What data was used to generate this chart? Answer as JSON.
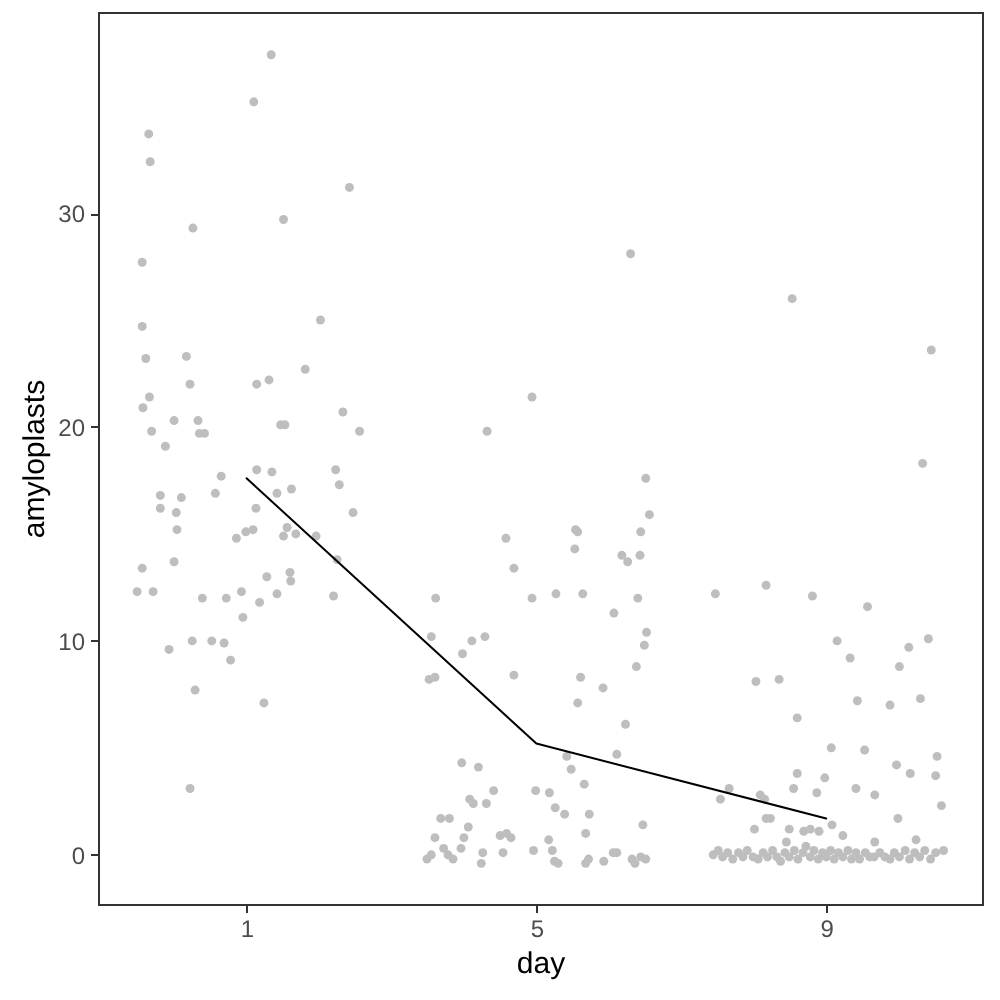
{
  "chart_data": {
    "type": "scatter",
    "xlabel": "day",
    "ylabel": "amyloplasts",
    "xlim": [
      -1.05,
      11.15
    ],
    "xticks": [
      1,
      5,
      9
    ],
    "ylim": [
      -2.3,
      39.4
    ],
    "yticks": [
      0,
      10,
      20,
      30
    ],
    "grid": false,
    "series": [
      {
        "color": "#bebebe",
        "marker": "circle",
        "x": [
          1.34,
          1.1,
          -0.35,
          -0.33,
          2.42,
          1.51,
          0.26,
          -0.44,
          -0.44,
          2.02,
          -0.39,
          0.17,
          1.81,
          0.22,
          1.14,
          1.31,
          -0.34,
          -0.43,
          2.33,
          0.0,
          0.33,
          1.47,
          1.53,
          -0.31,
          0.35,
          0.42,
          2.56,
          -0.12,
          1.14,
          1.35,
          2.23,
          0.65,
          2.28,
          1.62,
          1.42,
          0.57,
          -0.19,
          0.1,
          -0.19,
          1.13,
          0.03,
          2.47,
          0.04,
          1.56,
          0.99,
          1.09,
          1.51,
          1.68,
          1.96,
          0.86,
          0.0,
          2.25,
          -0.44,
          1.6,
          1.28,
          1.61,
          -0.51,
          -0.29,
          0.93,
          0.39,
          0.72,
          1.42,
          2.2,
          1.18,
          0.95,
          0.25,
          0.52,
          0.69,
          -0.07,
          0.78,
          0.29,
          1.24,
          0.22,
          6.3,
          4.94,
          4.32,
          6.51,
          6.56,
          4.58,
          5.54,
          5.57,
          6.44,
          5.53,
          6.18,
          6.26,
          6.43,
          4.69,
          3.61,
          4.94,
          5.27,
          5.64,
          6.4,
          6.07,
          6.52,
          3.55,
          4.29,
          4.11,
          6.49,
          3.98,
          6.38,
          3.52,
          3.6,
          4.69,
          5.61,
          5.92,
          5.57,
          6.23,
          6.11,
          5.42,
          5.48,
          3.97,
          4.2,
          5.66,
          4.41,
          4.99,
          5.18,
          4.08,
          4.13,
          4.31,
          5.26,
          5.39,
          5.73,
          3.68,
          3.8,
          4.06,
          6.47,
          4.5,
          4.59,
          4.65,
          5.68,
          3.6,
          4.0,
          5.17,
          3.72,
          3.96,
          4.26,
          4.54,
          4.96,
          5.22,
          6.06,
          6.11,
          3.55,
          3.78,
          3.85,
          3.49,
          4.24,
          5.25,
          5.3,
          5.68,
          5.72,
          5.93,
          6.32,
          6.36,
          6.51,
          6.44,
          8.53,
          10.45,
          10.33,
          7.47,
          8.17,
          8.81,
          9.57,
          9.15,
          9.33,
          10.14,
          10.41,
          10.01,
          8.03,
          8.35,
          9.43,
          9.88,
          10.3,
          8.6,
          9.07,
          9.53,
          10.53,
          9.97,
          8.6,
          8.98,
          10.16,
          10.51,
          7.66,
          7.54,
          8.09,
          8.15,
          8.55,
          8.87,
          9.41,
          9.67,
          10.59,
          8.17,
          8.23,
          9.99,
          9.08,
          8.01,
          8.49,
          8.69,
          8.78,
          8.9,
          9.23,
          8.45,
          9.67,
          10.24,
          7.44,
          7.51,
          7.57,
          7.64,
          7.71,
          7.79,
          7.85,
          7.91,
          7.99,
          8.06,
          8.13,
          8.19,
          8.26,
          8.32,
          8.37,
          8.43,
          8.49,
          8.56,
          8.61,
          8.68,
          8.72,
          8.78,
          8.83,
          8.89,
          8.95,
          9.0,
          9.06,
          9.11,
          9.17,
          9.23,
          9.3,
          9.35,
          9.41,
          9.46,
          9.54,
          9.6,
          9.66,
          9.74,
          9.81,
          9.88,
          9.94,
          10.01,
          10.09,
          10.15,
          10.22,
          10.29,
          10.36,
          10.44,
          10.51,
          10.62
        ],
        "values": [
          37.4,
          35.2,
          33.7,
          32.4,
          31.2,
          29.7,
          29.3,
          27.7,
          24.7,
          25.0,
          23.2,
          23.3,
          22.7,
          22.0,
          22.0,
          22.2,
          21.4,
          20.9,
          20.7,
          20.3,
          20.3,
          20.1,
          20.1,
          19.8,
          19.7,
          19.7,
          19.8,
          19.1,
          18.0,
          17.9,
          18.0,
          17.7,
          17.3,
          17.1,
          16.9,
          16.9,
          16.8,
          16.7,
          16.2,
          16.2,
          16.0,
          16.0,
          15.2,
          15.3,
          15.1,
          15.2,
          14.9,
          15.0,
          14.9,
          14.8,
          13.7,
          13.8,
          13.4,
          13.2,
          13.0,
          12.8,
          12.3,
          12.3,
          12.3,
          12.0,
          12.0,
          12.2,
          12.1,
          11.8,
          11.1,
          10.0,
          10.0,
          9.9,
          9.6,
          9.1,
          7.7,
          7.1,
          3.1,
          28.1,
          21.4,
          19.8,
          17.6,
          15.9,
          14.8,
          15.2,
          15.1,
          15.1,
          14.3,
          14.0,
          13.7,
          14.0,
          13.4,
          12.0,
          12.0,
          12.2,
          12.2,
          12.0,
          11.3,
          10.4,
          10.2,
          10.2,
          10.0,
          9.8,
          9.4,
          8.8,
          8.2,
          8.3,
          8.4,
          8.3,
          7.8,
          7.1,
          6.1,
          4.7,
          4.6,
          4.0,
          4.3,
          4.1,
          3.3,
          3.0,
          3.0,
          2.9,
          2.6,
          2.4,
          2.4,
          2.2,
          1.9,
          1.9,
          1.7,
          1.7,
          1.3,
          1.4,
          0.9,
          1.0,
          0.8,
          1.0,
          0.8,
          0.8,
          0.7,
          0.3,
          0.3,
          0.1,
          0.1,
          0.2,
          0.2,
          0.1,
          0.1,
          0.0,
          0.0,
          -0.2,
          -0.2,
          -0.4,
          -0.3,
          -0.4,
          -0.4,
          -0.2,
          -0.3,
          -0.2,
          -0.4,
          -0.2,
          -0.1,
          26.0,
          23.6,
          18.3,
          12.2,
          12.6,
          12.1,
          11.6,
          10.0,
          9.2,
          9.7,
          10.1,
          8.8,
          8.1,
          8.2,
          7.2,
          7.0,
          7.3,
          6.4,
          5.0,
          4.9,
          4.6,
          4.2,
          3.8,
          3.6,
          3.8,
          3.7,
          3.1,
          2.6,
          2.8,
          2.6,
          3.1,
          2.9,
          3.1,
          2.8,
          2.3,
          1.7,
          1.7,
          1.7,
          1.4,
          1.2,
          1.2,
          1.1,
          1.2,
          1.1,
          0.9,
          0.6,
          0.6,
          0.7,
          0.0,
          0.2,
          -0.1,
          0.1,
          -0.2,
          0.1,
          -0.1,
          0.2,
          -0.1,
          -0.2,
          0.1,
          -0.1,
          0.2,
          -0.1,
          -0.3,
          0.1,
          -0.1,
          0.2,
          -0.2,
          0.1,
          0.4,
          -0.1,
          0.2,
          -0.2,
          0.1,
          -0.1,
          0.2,
          -0.2,
          0.1,
          -0.1,
          0.2,
          -0.2,
          0.1,
          -0.2,
          0.1,
          -0.1,
          -0.1,
          0.1,
          -0.1,
          -0.2,
          0.1,
          -0.1,
          0.2,
          -0.2,
          0.1,
          -0.1,
          0.2,
          -0.2,
          0.1,
          0.2
        ]
      },
      {
        "type": "line",
        "color": "#000000",
        "x": [
          1,
          5,
          9
        ],
        "values": [
          17.6,
          5.2,
          1.7
        ]
      }
    ]
  }
}
